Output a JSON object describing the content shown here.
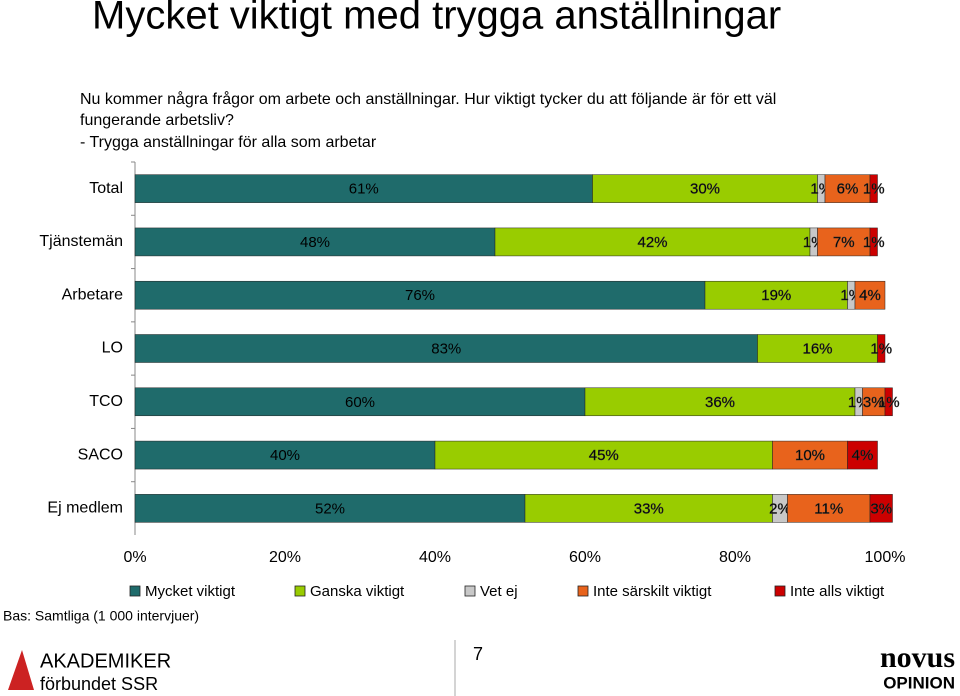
{
  "slide": {
    "title": "Mycket viktigt med trygga anställningar",
    "question": [
      "Nu kommer några frågor om arbete och anställningar. Hur viktigt tycker du att följande är för ett väl",
      "fungerande arbetsliv?",
      "- Trygga anställningar för alla som arbetar"
    ],
    "base": "Bas: Samtliga (1 000 intervjuer)",
    "page": "7",
    "logo_left": [
      "AKADEMIKER",
      "förbundet SSR"
    ],
    "logo_right": [
      "novus",
      "OPINION"
    ]
  },
  "chart_data": {
    "type": "stacked-barh",
    "categories": [
      "Total",
      "Tjänstemän",
      "Arbetare",
      "LO",
      "TCO",
      "SACO",
      "Ej medlem"
    ],
    "series": [
      {
        "name": "Mycket viktigt",
        "color": "#1f6b6b",
        "values": [
          61,
          48,
          76,
          83,
          60,
          40,
          52
        ],
        "value_labels": [
          "61%",
          "48%",
          "76%",
          "83%",
          "60%",
          "40%",
          "52%"
        ]
      },
      {
        "name": "Ganska viktigt",
        "color": "#99cc00",
        "values": [
          30,
          42,
          19,
          16,
          36,
          45,
          33
        ],
        "value_labels": [
          "30%",
          "42%",
          "19%",
          "16%",
          "36%",
          "45%",
          "33%"
        ]
      },
      {
        "name": "Vet ej",
        "color": "#c8c8c8",
        "values": [
          1,
          1,
          1,
          null,
          1,
          null,
          2
        ],
        "value_labels": [
          "1%",
          "1%",
          "1%",
          null,
          "1%",
          null,
          "2%"
        ]
      },
      {
        "name": "Inte särskilt viktigt",
        "color": "#e8631c",
        "values": [
          6,
          7,
          4,
          null,
          3,
          10,
          11
        ],
        "value_labels": [
          "6%",
          "7%",
          "4%",
          null,
          "3%",
          "10%",
          "11%"
        ]
      },
      {
        "name": "Inte alls viktigt",
        "color": "#cc0000",
        "values": [
          1,
          1,
          null,
          1,
          1,
          4,
          3
        ],
        "value_labels": [
          "1%",
          "1%",
          null,
          "1%",
          "1%",
          "4%",
          "3%"
        ]
      }
    ],
    "xlim": [
      0,
      100
    ],
    "xticks": [
      {
        "value": 0,
        "label": "0%"
      },
      {
        "value": 20,
        "label": "20%"
      },
      {
        "value": 40,
        "label": "40%"
      },
      {
        "value": 60,
        "label": "60%"
      },
      {
        "value": 80,
        "label": "80%"
      },
      {
        "value": 100,
        "label": "100%"
      }
    ]
  }
}
